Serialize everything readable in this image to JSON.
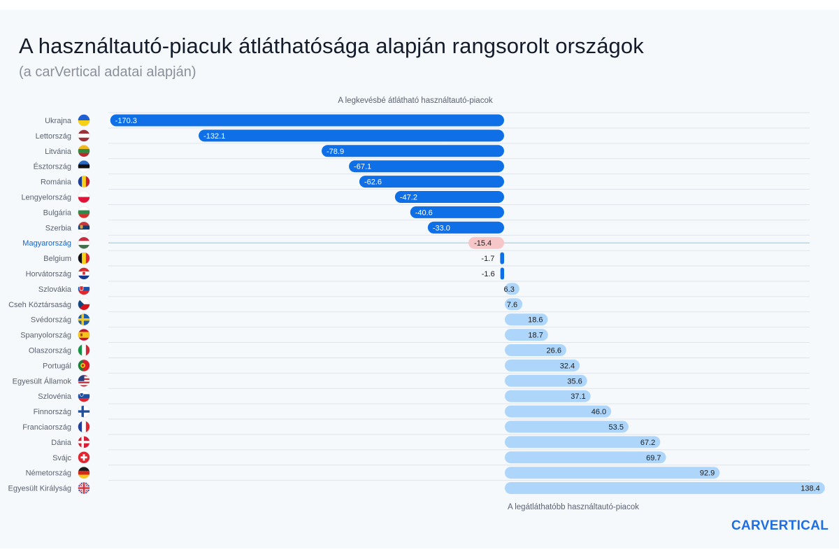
{
  "title": "A használtautó-piacuk átláthatósága alapján rangsorolt országok",
  "subtitle": "(a carVertical adatai alapján)",
  "brand": {
    "logo_text": "CARVERTICAL",
    "color": "#1f6fe0"
  },
  "colors": {
    "negative": "#0e6fe6",
    "highlight": "#f7c6c8",
    "positive": "#aed6fa",
    "grid": "#dfe4ea",
    "highlight_line": "#9ccbe6",
    "highlight_label": "#1b62c4",
    "country_label": "#5a6270"
  },
  "chart_data": {
    "type": "bar",
    "orientation": "horizontal",
    "top_annotation": "A legkevésbé átlátható használtautó-piacok",
    "bottom_annotation": "A legátláthatóbb használtautó-piacok",
    "highlight": "Magyarország",
    "categories": [
      "Ukrajna",
      "Lettország",
      "Litvánia",
      "Észtország",
      "Románia",
      "Lengyelország",
      "Bulgária",
      "Szerbia",
      "Magyarország",
      "Belgium",
      "Horvátország",
      "Szlovákia",
      "Cseh Köztársaság",
      "Svédország",
      "Spanyolország",
      "Olaszország",
      "Portugál",
      "Egyesült Államok",
      "Szlovénia",
      "Finnország",
      "Franciaország",
      "Dánia",
      "Svájc",
      "Németország",
      "Egyesült Királyság"
    ],
    "values": [
      -170.3,
      -132.1,
      -78.9,
      -67.1,
      -62.6,
      -47.2,
      -40.6,
      -33.0,
      -15.4,
      -1.7,
      -1.6,
      6.3,
      7.6,
      18.6,
      18.7,
      26.6,
      32.4,
      35.6,
      37.1,
      46.0,
      53.5,
      67.2,
      69.7,
      92.9,
      138.4
    ],
    "value_labels": [
      "-170.3",
      "-132.1",
      "-78.9",
      "-67.1",
      "-62.6",
      "-47.2",
      "-40.6",
      "-33.0",
      "-15.4",
      "-1.7",
      "-1.6",
      "6.3",
      "7.6",
      "18.6",
      "18.7",
      "26.6",
      "32.4",
      "35.6",
      "37.1",
      "46.0",
      "53.5",
      "67.2",
      "69.7",
      "92.9",
      "138.4"
    ],
    "flags": [
      "ukraine-flag-icon",
      "latvia-flag-icon",
      "lithuania-flag-icon",
      "estonia-flag-icon",
      "romania-flag-icon",
      "poland-flag-icon",
      "bulgaria-flag-icon",
      "serbia-flag-icon",
      "hungary-flag-icon",
      "belgium-flag-icon",
      "croatia-flag-icon",
      "slovakia-flag-icon",
      "czechia-flag-icon",
      "sweden-flag-icon",
      "spain-flag-icon",
      "italy-flag-icon",
      "portugal-flag-icon",
      "usa-flag-icon",
      "slovenia-flag-icon",
      "finland-flag-icon",
      "france-flag-icon",
      "denmark-flag-icon",
      "switzerland-flag-icon",
      "germany-flag-icon",
      "uk-flag-icon"
    ],
    "xlim": [
      -170.3,
      138.4
    ],
    "grid": true,
    "legend": "none"
  }
}
